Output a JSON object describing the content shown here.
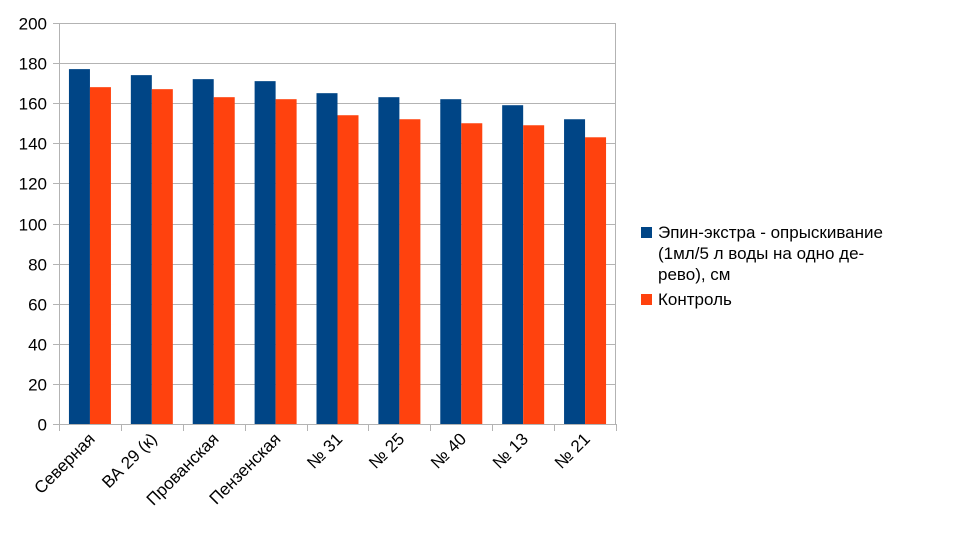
{
  "chart_data": {
    "type": "bar",
    "title": "",
    "xlabel": "",
    "ylabel": "",
    "ylim": [
      0,
      200
    ],
    "yticks": [
      0,
      20,
      40,
      60,
      80,
      100,
      120,
      140,
      160,
      180,
      200
    ],
    "grid": true,
    "legend_position": "right",
    "categories": [
      "Северная",
      "ВА 29 (к)",
      "Прованская",
      "Пензенская",
      "№ 31",
      "№ 25",
      "№ 40",
      "№ 13",
      "№ 21"
    ],
    "series": [
      {
        "name": "Эпин-экстра - опрыскивание (1мл/5 л воды на одно дерево), см",
        "color": "#004586",
        "values": [
          177,
          174,
          172,
          171,
          165,
          163,
          162,
          159,
          152
        ]
      },
      {
        "name": "Контроль",
        "color": "#ff420e",
        "values": [
          168,
          167,
          163,
          162,
          154,
          152,
          150,
          149,
          143
        ]
      }
    ]
  },
  "legend": {
    "items": [
      {
        "lines": [
          "Эпин-экстра - опрыскивание",
          "(1мл/5 л воды на одно де-",
          "рево), см"
        ],
        "color": "#004586"
      },
      {
        "lines": [
          "Контроль"
        ],
        "color": "#ff420e"
      }
    ]
  }
}
